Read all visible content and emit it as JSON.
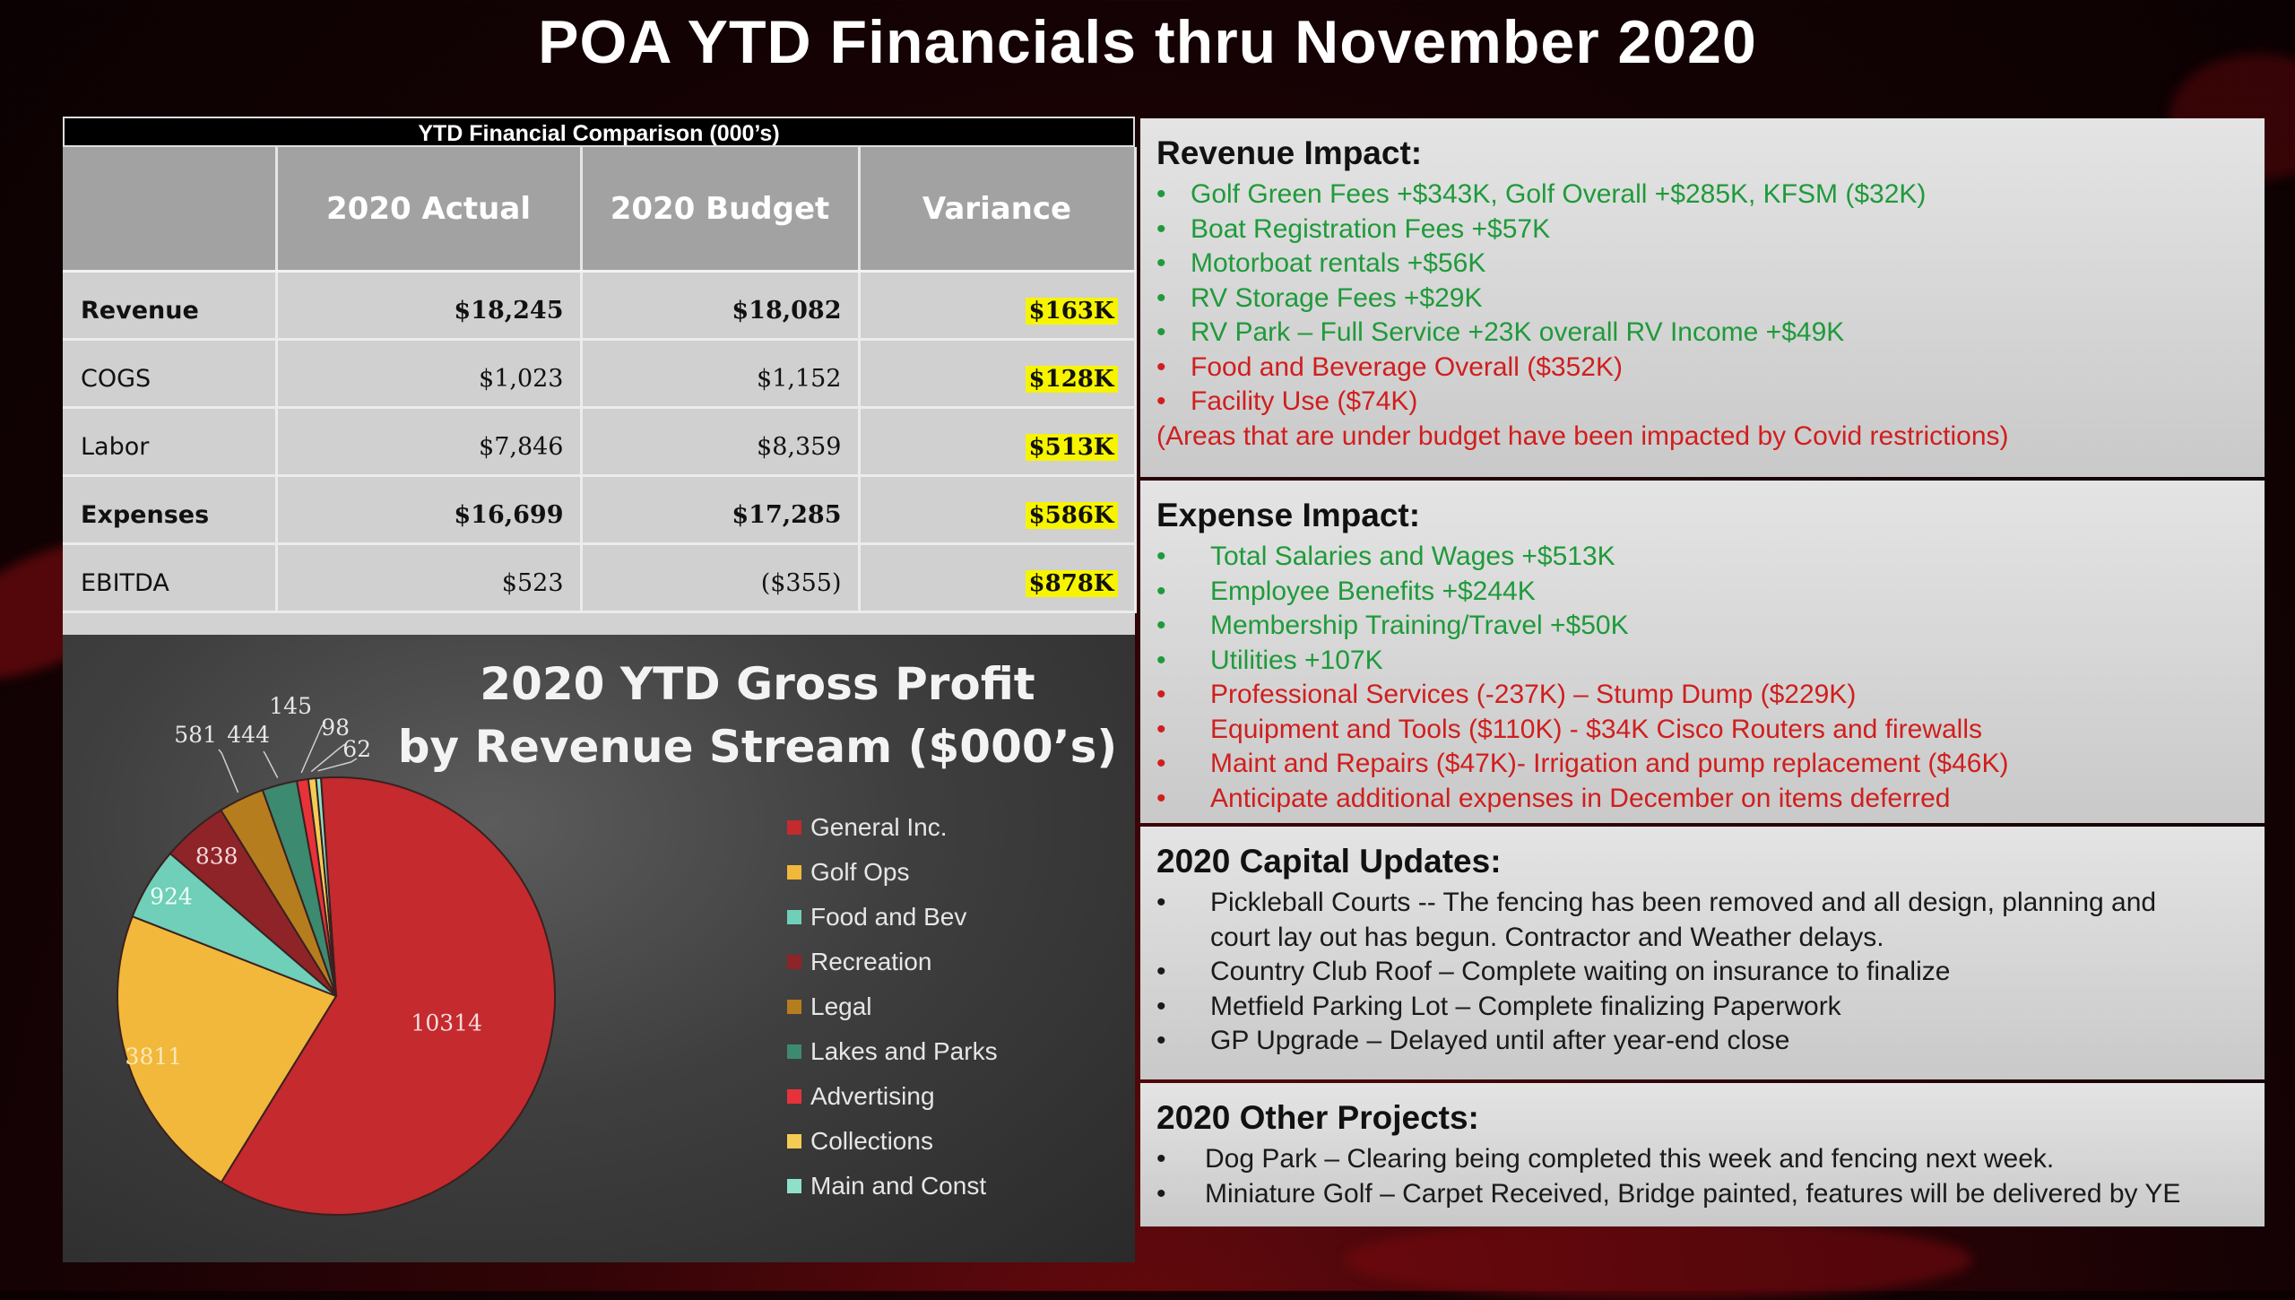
{
  "title": "POA YTD Financials thru November 2020",
  "table": {
    "caption": "YTD Financial Comparison (000’s)",
    "headers": [
      "",
      "2020 Actual",
      "2020 Budget",
      "Variance"
    ],
    "rows": [
      {
        "label": "Revenue",
        "actual": "$18,245",
        "budget": "$18,082",
        "variance": "$163K",
        "bold": true
      },
      {
        "label": "COGS",
        "actual": "$1,023",
        "budget": "$1,152",
        "variance": "$128K",
        "bold": false
      },
      {
        "label": "Labor",
        "actual": "$7,846",
        "budget": "$8,359",
        "variance": "$513K",
        "bold": false
      },
      {
        "label": "Expenses",
        "actual": "$16,699",
        "budget": "$17,285",
        "variance": "$586K",
        "bold": true
      },
      {
        "label": "EBITDA",
        "actual": "$523",
        "budget": "($355)",
        "variance": "$878K",
        "bold": false
      }
    ]
  },
  "chart_data": {
    "type": "pie",
    "title": "2020 YTD Gross Profit by Revenue Stream ($000’s)",
    "title_line1": "2020 YTD Gross Profit",
    "title_line2": "by Revenue Stream ($000’s)",
    "categories": [
      "General Inc.",
      "Golf Ops",
      "Food and Bev",
      "Recreation",
      "Legal",
      "Lakes and Parks",
      "Advertising",
      "Collections",
      "Main and Const"
    ],
    "values": [
      10314,
      3811,
      924,
      838,
      581,
      444,
      145,
      98,
      62
    ],
    "colors": [
      "#c42a2e",
      "#f1b83b",
      "#6fcfb8",
      "#8e2428",
      "#b57d1e",
      "#3c8a70",
      "#e8323a",
      "#f4cc55",
      "#8fe0c8"
    ],
    "legend_position": "right"
  },
  "revenue": {
    "heading": "Revenue Impact:",
    "items": [
      {
        "text": "Golf Green Fees  +$343K, Golf Overall +$285K, KFSM ($32K)",
        "color": "green"
      },
      {
        "text": "Boat Registration Fees +$57K",
        "color": "green"
      },
      {
        "text": "Motorboat rentals +$56K",
        "color": "green"
      },
      {
        "text": "RV Storage Fees +$29K",
        "color": "green"
      },
      {
        "text": "RV Park – Full Service +23K overall RV Income +$49K",
        "color": "green"
      },
      {
        "text": "Food and Beverage Overall ($352K)",
        "color": "red"
      },
      {
        "text": "Facility Use ($74K)",
        "color": "red"
      }
    ],
    "note": "(Areas that are under budget have been impacted by Covid restrictions)"
  },
  "expense": {
    "heading": "Expense Impact:",
    "items": [
      {
        "text": "Total Salaries and Wages  +$513K",
        "color": "green"
      },
      {
        "text": "Employee Benefits  +$244K",
        "color": "green"
      },
      {
        "text": "Membership Training/Travel  +$50K",
        "color": "green"
      },
      {
        "text": "Utilities +107K",
        "color": "green"
      },
      {
        "text": "Professional Services (-237K) – Stump Dump ($229K)",
        "color": "red"
      },
      {
        "text": "Equipment and Tools ($110K) - $34K Cisco Routers and firewalls",
        "color": "red"
      },
      {
        "text": "Maint and Repairs ($47K)- Irrigation and pump replacement ($46K)",
        "color": "red"
      },
      {
        "text": "Anticipate additional expenses in December on items deferred",
        "color": "red"
      }
    ]
  },
  "capital": {
    "heading": "2020 Capital Updates:",
    "items": [
      {
        "text": "Pickleball Courts -- The fencing has been removed and all design, planning and",
        "cont": "court lay out has begun.  Contractor and Weather delays."
      },
      {
        "text": "Country Club Roof – Complete waiting on insurance to finalize"
      },
      {
        "text": "Metfield Parking Lot – Complete finalizing Paperwork"
      },
      {
        "text": "GP Upgrade – Delayed until after year-end close"
      }
    ]
  },
  "other": {
    "heading": "2020 Other Projects:",
    "items": [
      {
        "text": "Dog Park – Clearing being completed this week and fencing next week."
      },
      {
        "text": "Miniature Golf – Carpet Received, Bridge painted, features will be delivered by YE"
      }
    ]
  }
}
